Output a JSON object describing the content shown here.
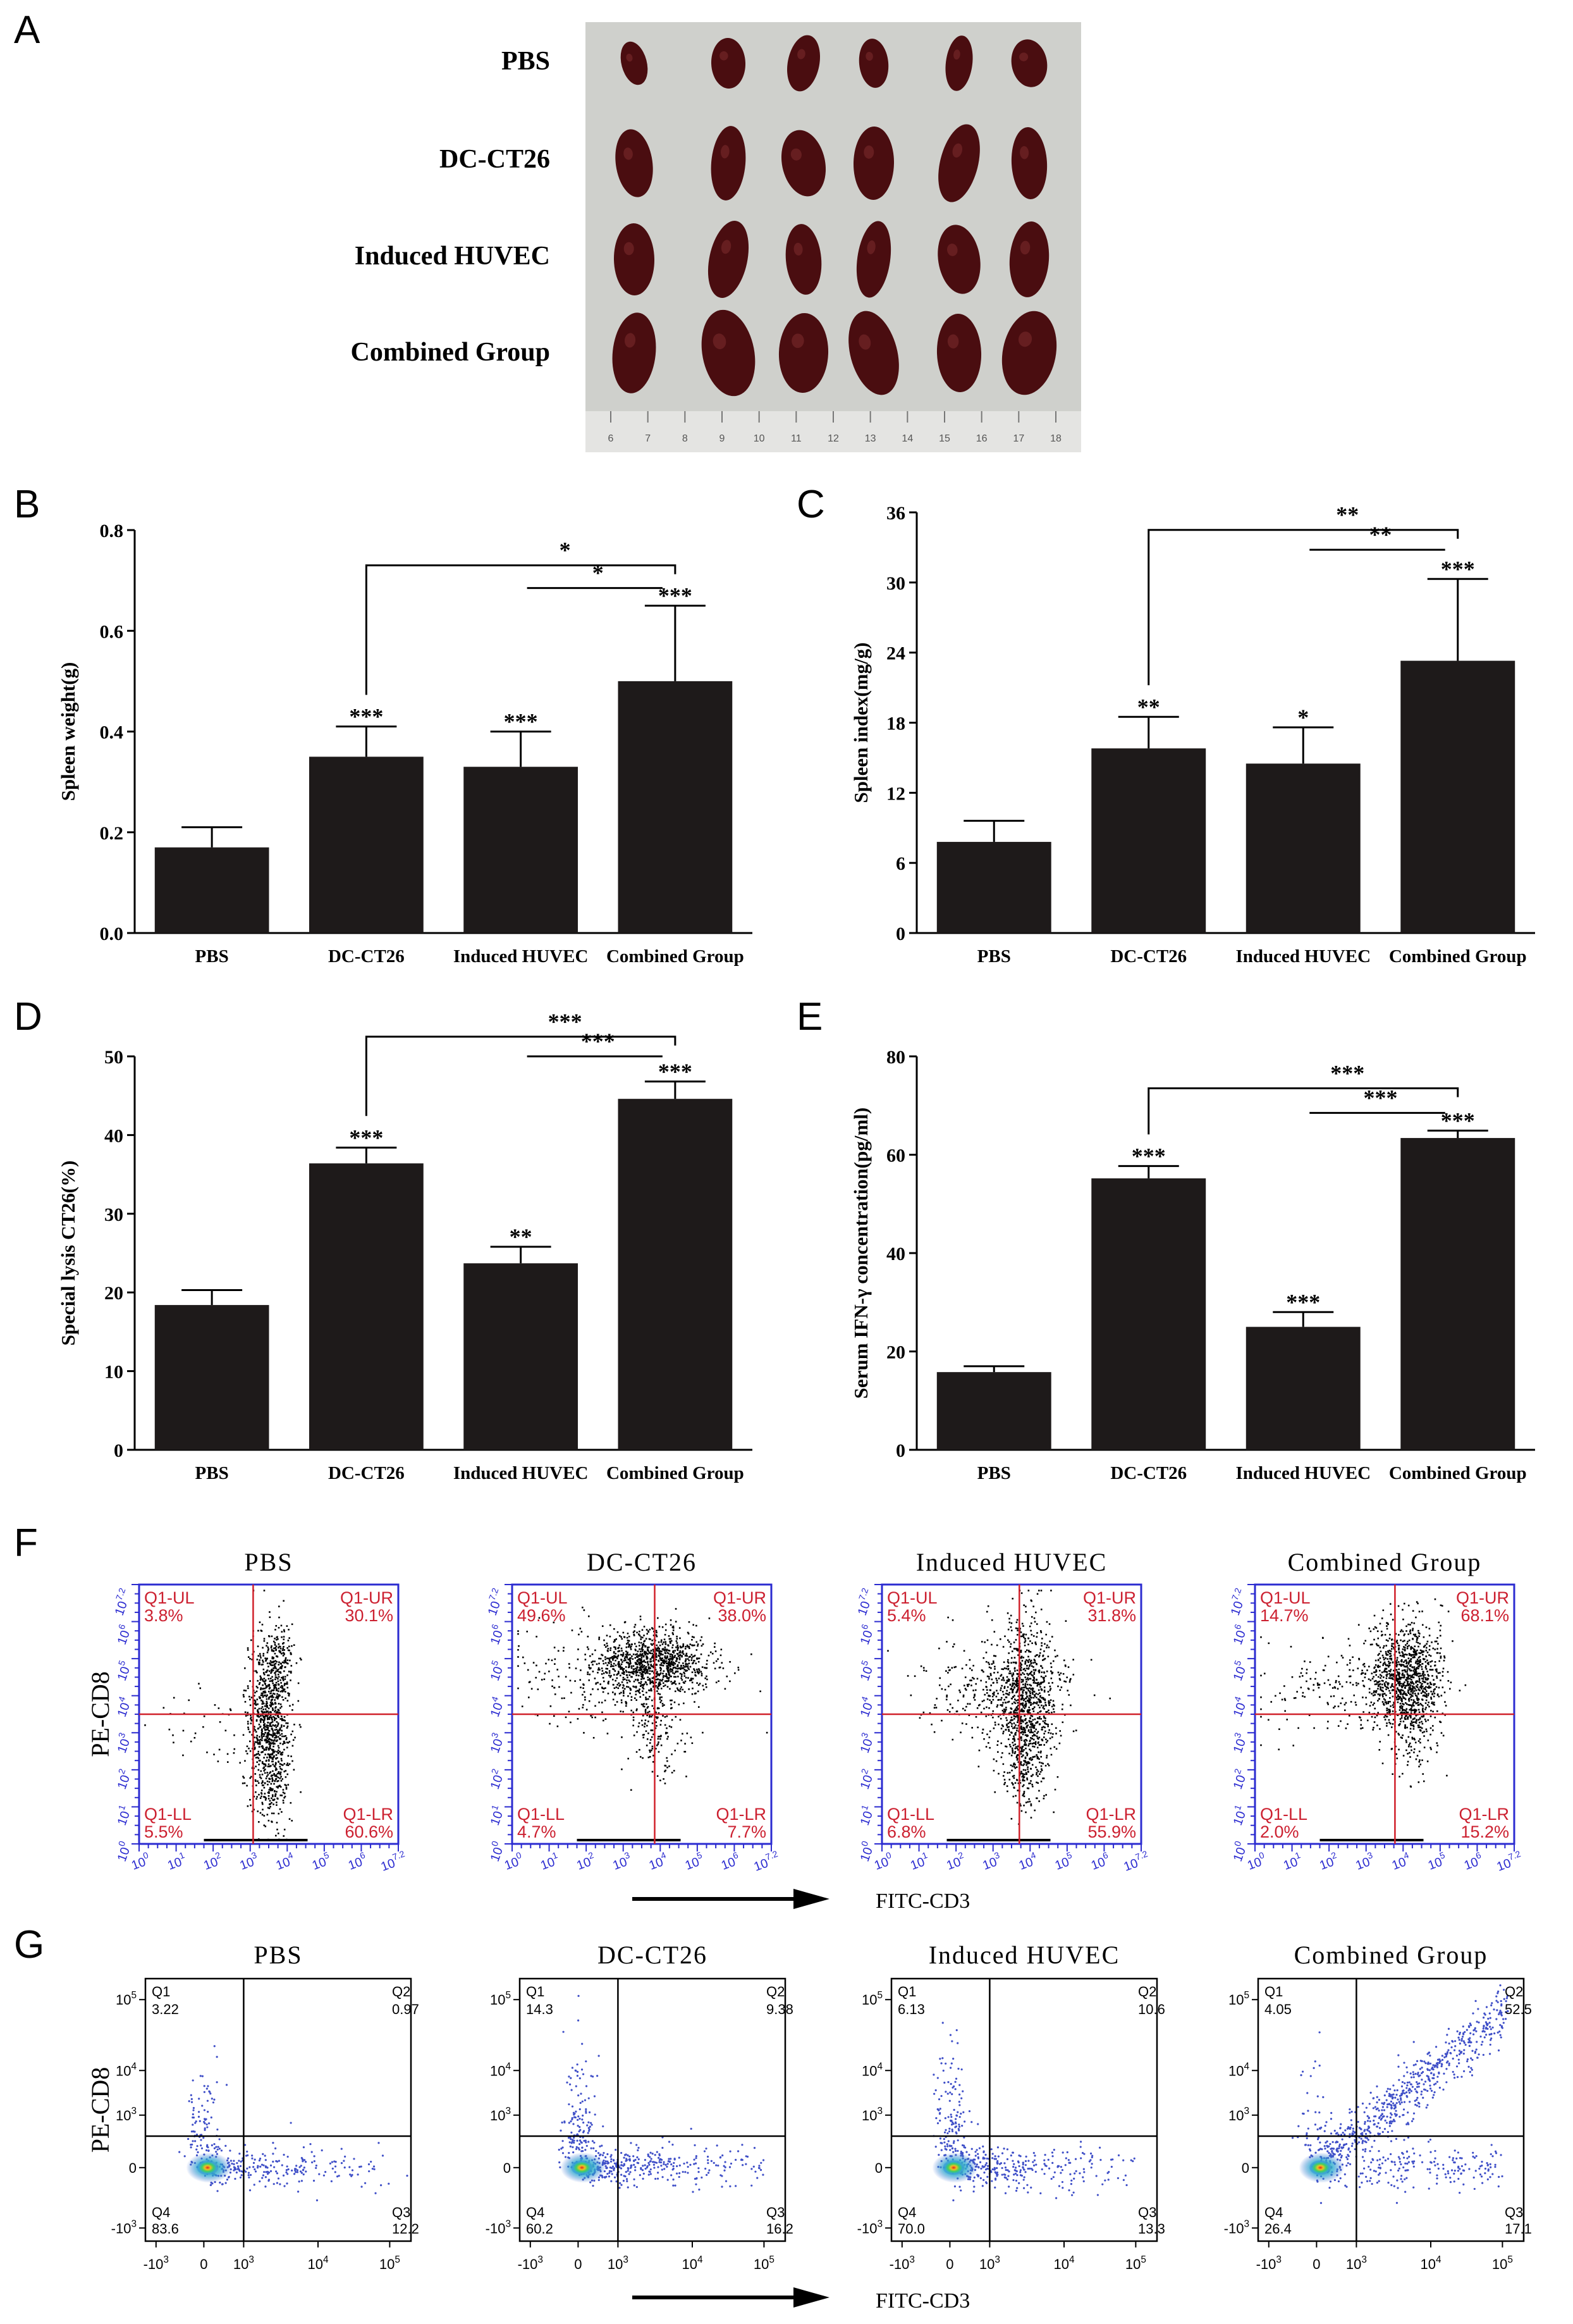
{
  "panel_letters": {
    "A": "A",
    "B": "B",
    "C": "C",
    "D": "D",
    "E": "E",
    "F": "F",
    "G": "G"
  },
  "photo": {
    "row_labels": [
      "PBS",
      "DC-CT26",
      "Induced HUVEC",
      "Combined Group"
    ],
    "ruler_numbers": [
      "6",
      "7",
      "8",
      "9",
      "10",
      "11",
      "12",
      "13",
      "14",
      "15",
      "16",
      "17",
      "18"
    ],
    "spleens_per_row": 6,
    "colors": {
      "background": "#cfd0cc",
      "spleen": "#4a0d10",
      "ruler": "#e4e4e2"
    }
  },
  "chart_data": [
    {
      "panel": "B",
      "type": "bar",
      "categories": [
        "PBS",
        "DC-CT26",
        "Induced HUVEC",
        "Combined Group"
      ],
      "values": [
        0.17,
        0.35,
        0.33,
        0.5
      ],
      "errors": [
        0.04,
        0.06,
        0.07,
        0.15
      ],
      "ylabel": "Spleen weight(g)",
      "ylim": [
        0,
        0.8
      ],
      "yticks": [
        "0.0",
        "0.2",
        "0.4",
        "0.6",
        "0.8"
      ],
      "ytick_values": [
        0,
        0.2,
        0.4,
        0.6,
        0.8
      ],
      "bar_stars": [
        "",
        "***",
        "***",
        "***"
      ],
      "comparisons": [
        {
          "from": 1,
          "to": 3,
          "label": "*",
          "y": 0.73,
          "style": "bracket"
        },
        {
          "from": 2,
          "to": 3,
          "label": "*",
          "y": 0.685,
          "style": "line"
        }
      ],
      "bar_color": "#1e1a1a"
    },
    {
      "panel": "C",
      "type": "bar",
      "categories": [
        "PBS",
        "DC-CT26",
        "Induced HUVEC",
        "Combined Group"
      ],
      "values": [
        7.8,
        15.8,
        14.5,
        23.3
      ],
      "errors": [
        1.8,
        2.7,
        3.1,
        7.0
      ],
      "ylabel": "Spleen index(mg/g)",
      "ylim": [
        0,
        36
      ],
      "yticks": [
        "0",
        "6",
        "12",
        "18",
        "24",
        "30",
        "36"
      ],
      "ytick_values": [
        0,
        6,
        12,
        18,
        24,
        30,
        36
      ],
      "bar_stars": [
        "",
        "**",
        "*",
        "***"
      ],
      "comparisons": [
        {
          "from": 1,
          "to": 3,
          "label": "**",
          "y": 34.5,
          "style": "bracket"
        },
        {
          "from": 2,
          "to": 3,
          "label": "**",
          "y": 32.8,
          "style": "line"
        }
      ],
      "bar_color": "#1e1a1a"
    },
    {
      "panel": "D",
      "type": "bar",
      "categories": [
        "PBS",
        "DC-CT26",
        "Induced HUVEC",
        "Combined Group"
      ],
      "values": [
        18.4,
        36.4,
        23.7,
        44.6
      ],
      "errors": [
        1.9,
        2.0,
        2.1,
        2.2
      ],
      "ylabel": "Special lysis CT26(%)",
      "ylim": [
        0,
        50
      ],
      "yticks": [
        "0",
        "10",
        "20",
        "30",
        "40",
        "50"
      ],
      "ytick_values": [
        0,
        10,
        20,
        30,
        40,
        50
      ],
      "bar_stars": [
        "",
        "***",
        "**",
        "***"
      ],
      "comparisons": [
        {
          "from": 1,
          "to": 3,
          "label": "***",
          "y": 52.5,
          "style": "bracket"
        },
        {
          "from": 2,
          "to": 3,
          "label": "***",
          "y": 50.0,
          "style": "line"
        }
      ],
      "bar_color": "#1e1a1a"
    },
    {
      "panel": "E",
      "type": "bar",
      "categories": [
        "PBS",
        "DC-CT26",
        "Induced HUVEC",
        "Combined Group"
      ],
      "values": [
        15.8,
        55.2,
        25.0,
        63.4
      ],
      "errors": [
        1.2,
        2.5,
        3.0,
        1.5
      ],
      "ylabel": "Serum IFN-γ concentration(pg/ml)",
      "ylim": [
        0,
        80
      ],
      "yticks": [
        "0",
        "20",
        "40",
        "60",
        "80"
      ],
      "ytick_values": [
        0,
        20,
        40,
        60,
        80
      ],
      "bar_stars": [
        "",
        "***",
        "***",
        "***"
      ],
      "comparisons": [
        {
          "from": 1,
          "to": 3,
          "label": "***",
          "y": 73.5,
          "style": "bracket"
        },
        {
          "from": 2,
          "to": 3,
          "label": "***",
          "y": 68.5,
          "style": "line"
        }
      ],
      "bar_color": "#1e1a1a"
    },
    {
      "panel": "F",
      "type": "scatter",
      "group_titles": [
        "PBS",
        "DC-CT26",
        "Induced HUVEC",
        "Combined Group"
      ],
      "xlabel": "FITC-CD3",
      "ylabel": "PE-CD8",
      "quadrant_names": [
        "Q1-UL",
        "Q1-UR",
        "Q1-LL",
        "Q1-LR"
      ],
      "quadrants": [
        {
          "UL": "3.8%",
          "UR": "30.1%",
          "LL": "5.5%",
          "LR": "60.6%"
        },
        {
          "UL": "49.6%",
          "UR": "38.0%",
          "LL": "4.7%",
          "LR": "7.7%"
        },
        {
          "UL": "5.4%",
          "UR": "31.8%",
          "LL": "6.8%",
          "LR": "55.9%"
        },
        {
          "UL": "14.7%",
          "UR": "68.1%",
          "LL": "2.0%",
          "LR": "15.2%"
        }
      ],
      "x_ticks": [
        "10^0",
        "10^1",
        "10^2",
        "10^3",
        "10^4",
        "10^5",
        "10^6",
        "10^7.2"
      ],
      "y_ticks": [
        "10^0",
        "10^1",
        "10^2",
        "10^3",
        "10^4",
        "10^5",
        "10^6",
        "10^7.2"
      ],
      "frame_color": "#2b2bd0",
      "gate_color": "#d0202a",
      "label_color": "#cc2030"
    },
    {
      "panel": "G",
      "type": "scatter",
      "group_titles": [
        "PBS",
        "DC-CT26",
        "Induced HUVEC",
        "Combined Group"
      ],
      "xlabel": "FITC-CD3",
      "ylabel": "PE-CD8",
      "quadrant_names": [
        "Q1",
        "Q2",
        "Q4",
        "Q3"
      ],
      "quadrants": [
        {
          "Q1": "3.22",
          "Q2": "0.97",
          "Q4": "83.6",
          "Q3": "12.2"
        },
        {
          "Q1": "14.3",
          "Q2": "9.38",
          "Q4": "60.2",
          "Q3": "16.2"
        },
        {
          "Q1": "6.13",
          "Q2": "10.6",
          "Q4": "70.0",
          "Q3": "13.3"
        },
        {
          "Q1": "4.05",
          "Q2": "52.5",
          "Q4": "26.4",
          "Q3": "17.1"
        }
      ],
      "x_ticks": [
        "-10^3",
        "0",
        "10^3",
        "10^4",
        "10^5"
      ],
      "y_ticks": [
        "10^5",
        "10^4",
        "10^3",
        "0",
        "-10^3"
      ]
    }
  ]
}
